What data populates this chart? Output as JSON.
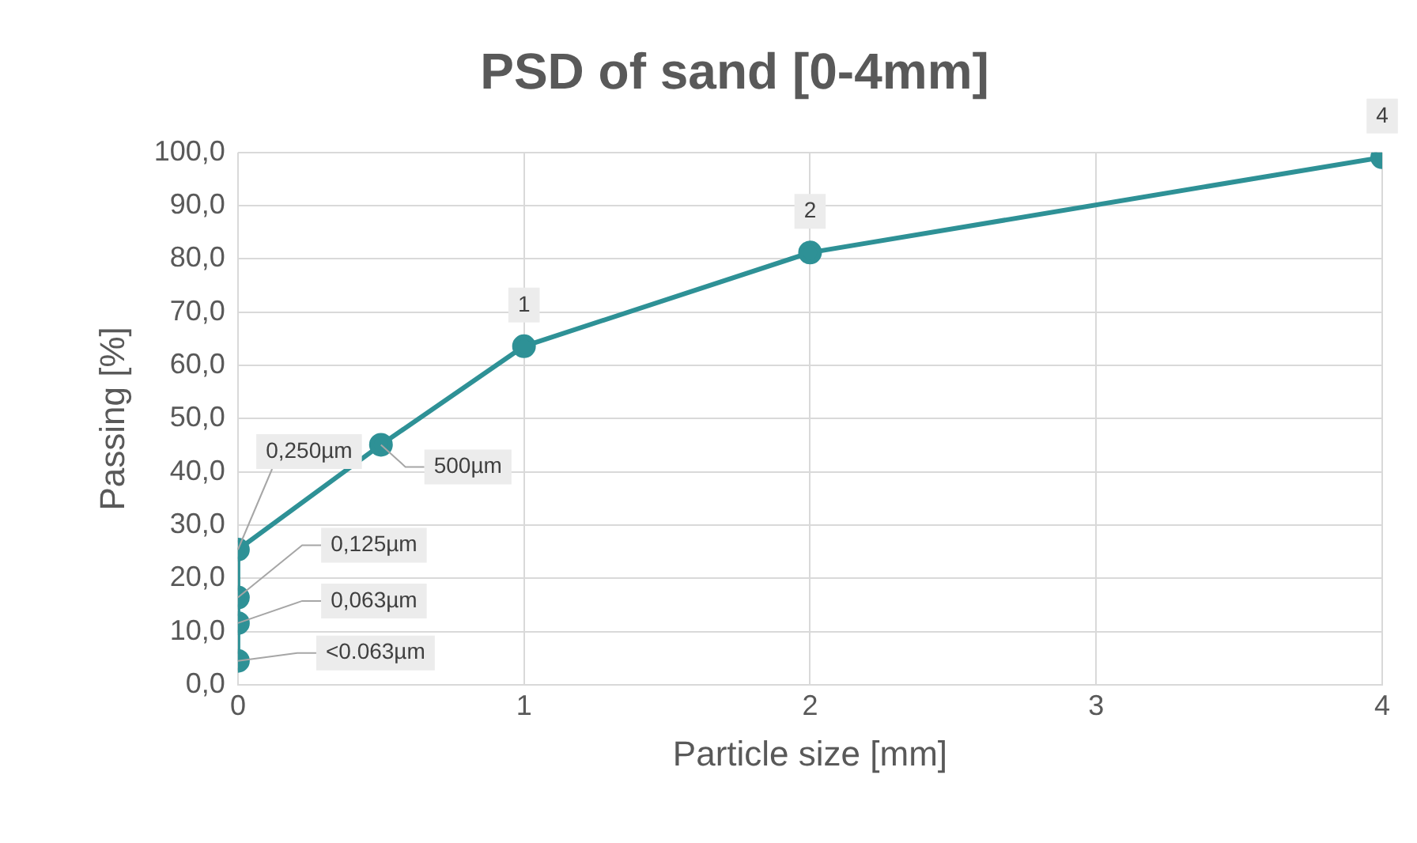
{
  "chart_data": {
    "type": "line",
    "title": "PSD of sand [0-4mm]",
    "xlabel": "Particle size [mm]",
    "ylabel": "Passing [%]",
    "x": [
      0,
      0,
      0,
      0,
      0.5,
      1,
      2,
      4
    ],
    "series": [
      {
        "color": "#2e9196",
        "values": [
          4.5,
          11.6,
          16.4,
          25.4,
          45.1,
          63.6,
          81.2,
          99.1
        ]
      }
    ],
    "annotations": [
      {
        "text": "<0.063µm",
        "x": 0,
        "y": 4.5
      },
      {
        "text": "0,063µm",
        "x": 0,
        "y": 11.6
      },
      {
        "text": "0,125µm",
        "x": 0,
        "y": 16.4
      },
      {
        "text": "0,250µm",
        "x": 0,
        "y": 25.4
      },
      {
        "text": "500µm",
        "x": 0.5,
        "y": 45.1
      },
      {
        "text": "1",
        "x": 1,
        "y": 63.6
      },
      {
        "text": "2",
        "x": 2,
        "y": 81.2
      },
      {
        "text": "4",
        "x": 4,
        "y": 99.1
      }
    ],
    "xlim": [
      0,
      4
    ],
    "xticks": [
      0,
      1,
      2,
      3,
      4
    ],
    "ylim": [
      0,
      100
    ],
    "yticks": [
      {
        "value": 0,
        "label": "0,0"
      },
      {
        "value": 10,
        "label": "10,0"
      },
      {
        "value": 20,
        "label": "20,0"
      },
      {
        "value": 30,
        "label": "30,0"
      },
      {
        "value": 40,
        "label": "40,0"
      },
      {
        "value": 50,
        "label": "50,0"
      },
      {
        "value": 60,
        "label": "60,0"
      },
      {
        "value": 70,
        "label": "70,0"
      },
      {
        "value": 80,
        "label": "80,0"
      },
      {
        "value": 90,
        "label": "90,0"
      },
      {
        "value": 100,
        "label": "100,0"
      }
    ],
    "grid": true,
    "legend": false,
    "marker": "circle",
    "line_style": "solid"
  }
}
